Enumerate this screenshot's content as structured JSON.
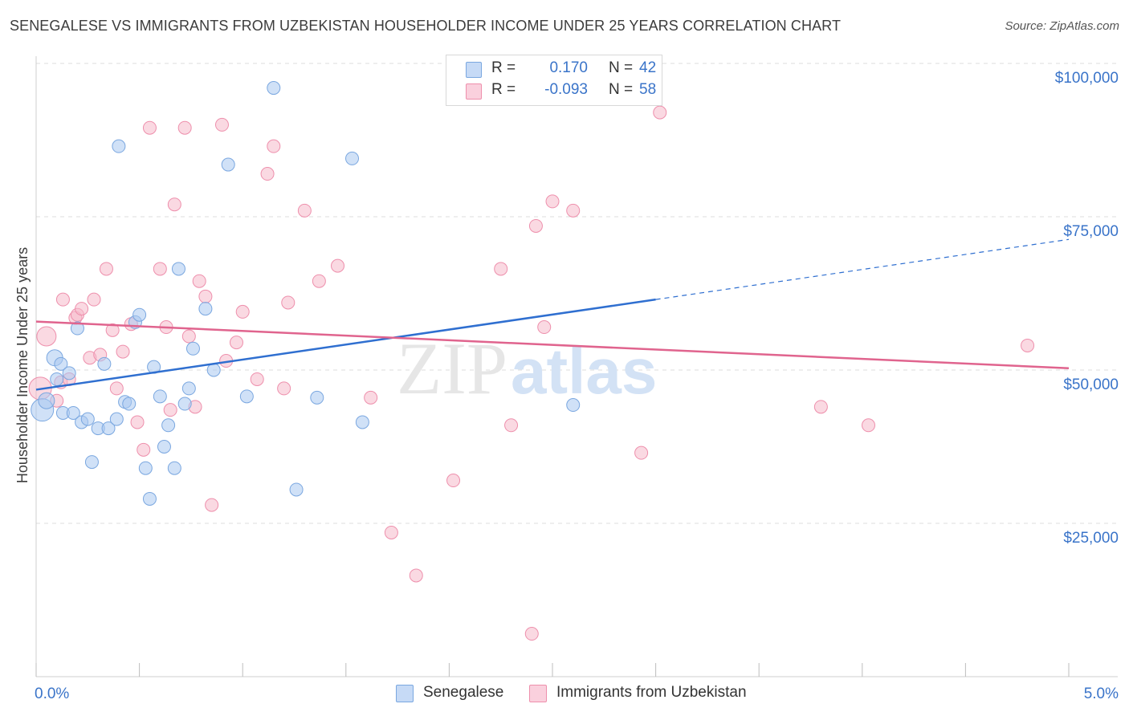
{
  "title": "SENEGALESE VS IMMIGRANTS FROM UZBEKISTAN HOUSEHOLDER INCOME UNDER 25 YEARS CORRELATION CHART",
  "source": "Source: ZipAtlas.com",
  "watermark": {
    "part1": "ZIP",
    "part2": "atlas"
  },
  "colors": {
    "blue_fill": "#a9c8f0",
    "blue_stroke": "#7aa7e0",
    "blue_line": "#2f6fd0",
    "pink_fill": "#f6b9cb",
    "pink_stroke": "#ee8fac",
    "pink_line": "#e0648e",
    "grid": "#dcdcdc",
    "axis_text": "#3a74c9"
  },
  "legend": {
    "rows": [
      {
        "r_label": "R =",
        "r_value": "0.170",
        "n_label": "N =",
        "n_value": "42",
        "color": "#a9c8f0",
        "border": "#7aa7e0"
      },
      {
        "r_label": "R =",
        "r_value": "-0.093",
        "n_label": "N =",
        "n_value": "58",
        "color": "#f6b9cb",
        "border": "#ee8fac"
      }
    ]
  },
  "bottom_legend": [
    {
      "label": "Senegalese",
      "color": "#a9c8f0",
      "border": "#7aa7e0"
    },
    {
      "label": "Immigrants from Uzbekistan",
      "color": "#f6b9cb",
      "border": "#ee8fac"
    }
  ],
  "chart_data": {
    "type": "scatter",
    "title": "SENEGALESE VS IMMIGRANTS FROM UZBEKISTAN HOUSEHOLDER INCOME UNDER 25 YEARS CORRELATION CHART",
    "xlabel": "",
    "ylabel": "Householder Income Under 25 years",
    "xlim": [
      0,
      5.0
    ],
    "ylim": [
      0,
      105000
    ],
    "x_tick_labels": [
      "0.0%",
      "5.0%"
    ],
    "y_ticks": [
      {
        "value": 25000,
        "label": "$25,000"
      },
      {
        "value": 50000,
        "label": "$50,000"
      },
      {
        "value": 75000,
        "label": "$75,000"
      },
      {
        "value": 100000,
        "label": "$100,000"
      }
    ],
    "series": [
      {
        "name": "Senegalese",
        "r": 0.17,
        "n": 42,
        "trend": {
          "x_start": 0.0,
          "y_start": 46800,
          "x_solid_end": 3.0,
          "y_solid_end": 61500,
          "x_end": 5.0,
          "y_end": 71300
        },
        "points": [
          [
            0.03,
            43500,
            14
          ],
          [
            0.05,
            45000,
            10
          ],
          [
            0.09,
            52000,
            10
          ],
          [
            0.1,
            48500,
            8
          ],
          [
            0.12,
            51000,
            8
          ],
          [
            0.13,
            43000,
            8
          ],
          [
            0.16,
            49500,
            8
          ],
          [
            0.18,
            43000,
            8
          ],
          [
            0.2,
            56800,
            8
          ],
          [
            0.22,
            41500,
            8
          ],
          [
            0.25,
            42000,
            8
          ],
          [
            0.27,
            35000,
            8
          ],
          [
            0.3,
            40500,
            8
          ],
          [
            0.33,
            51000,
            8
          ],
          [
            0.35,
            40500,
            8
          ],
          [
            0.39,
            42000,
            8
          ],
          [
            0.4,
            86500,
            8
          ],
          [
            0.43,
            44800,
            8
          ],
          [
            0.45,
            44500,
            8
          ],
          [
            0.48,
            57800,
            8
          ],
          [
            0.5,
            59000,
            8
          ],
          [
            0.53,
            34000,
            8
          ],
          [
            0.55,
            29000,
            8
          ],
          [
            0.57,
            50500,
            8
          ],
          [
            0.6,
            45700,
            8
          ],
          [
            0.62,
            37500,
            8
          ],
          [
            0.64,
            41000,
            8
          ],
          [
            0.67,
            34000,
            8
          ],
          [
            0.69,
            66500,
            8
          ],
          [
            0.72,
            44500,
            8
          ],
          [
            0.74,
            47000,
            8
          ],
          [
            0.76,
            53500,
            8
          ],
          [
            0.82,
            60000,
            8
          ],
          [
            0.86,
            50000,
            8
          ],
          [
            0.93,
            83500,
            8
          ],
          [
            1.02,
            45700,
            8
          ],
          [
            1.15,
            96000,
            8
          ],
          [
            1.26,
            30500,
            8
          ],
          [
            1.36,
            45500,
            8
          ],
          [
            1.53,
            84500,
            8
          ],
          [
            1.58,
            41500,
            8
          ],
          [
            2.6,
            44300,
            8
          ]
        ]
      },
      {
        "name": "Immigrants from Uzbekistan",
        "r": -0.093,
        "n": 58,
        "trend": {
          "x_start": 0.0,
          "y_start": 57900,
          "x_end": 5.0,
          "y_end": 50300
        },
        "points": [
          [
            0.02,
            47000,
            14
          ],
          [
            0.05,
            55500,
            12
          ],
          [
            0.1,
            45000,
            8
          ],
          [
            0.12,
            48000,
            8
          ],
          [
            0.13,
            61500,
            8
          ],
          [
            0.16,
            48500,
            8
          ],
          [
            0.19,
            58500,
            8
          ],
          [
            0.2,
            59000,
            8
          ],
          [
            0.22,
            60000,
            8
          ],
          [
            0.26,
            52000,
            8
          ],
          [
            0.28,
            61500,
            8
          ],
          [
            0.31,
            52500,
            8
          ],
          [
            0.34,
            66500,
            8
          ],
          [
            0.37,
            56500,
            8
          ],
          [
            0.39,
            47000,
            8
          ],
          [
            0.42,
            53000,
            8
          ],
          [
            0.46,
            57500,
            8
          ],
          [
            0.49,
            41500,
            8
          ],
          [
            0.52,
            37000,
            8
          ],
          [
            0.55,
            89500,
            8
          ],
          [
            0.6,
            66500,
            8
          ],
          [
            0.63,
            57000,
            8
          ],
          [
            0.65,
            43500,
            8
          ],
          [
            0.67,
            77000,
            8
          ],
          [
            0.72,
            89500,
            8
          ],
          [
            0.74,
            55500,
            8
          ],
          [
            0.77,
            44000,
            8
          ],
          [
            0.79,
            64500,
            8
          ],
          [
            0.82,
            62000,
            8
          ],
          [
            0.85,
            28000,
            8
          ],
          [
            0.9,
            90000,
            8
          ],
          [
            0.92,
            51500,
            8
          ],
          [
            0.97,
            54500,
            8
          ],
          [
            1.0,
            59500,
            8
          ],
          [
            1.07,
            48500,
            8
          ],
          [
            1.12,
            82000,
            8
          ],
          [
            1.15,
            86500,
            8
          ],
          [
            1.2,
            47000,
            8
          ],
          [
            1.22,
            61000,
            8
          ],
          [
            1.3,
            76000,
            8
          ],
          [
            1.37,
            64500,
            8
          ],
          [
            1.46,
            67000,
            8
          ],
          [
            1.62,
            45500,
            8
          ],
          [
            1.72,
            23500,
            8
          ],
          [
            1.84,
            16500,
            8
          ],
          [
            2.02,
            32000,
            8
          ],
          [
            2.25,
            66500,
            8
          ],
          [
            2.3,
            41000,
            8
          ],
          [
            2.4,
            7000,
            8
          ],
          [
            2.42,
            73500,
            8
          ],
          [
            2.46,
            57000,
            8
          ],
          [
            2.5,
            77500,
            8
          ],
          [
            2.6,
            76000,
            8
          ],
          [
            2.93,
            36500,
            8
          ],
          [
            3.02,
            92000,
            8
          ],
          [
            3.8,
            44000,
            8
          ],
          [
            4.03,
            41000,
            8
          ],
          [
            4.8,
            54000,
            8
          ]
        ]
      }
    ]
  }
}
